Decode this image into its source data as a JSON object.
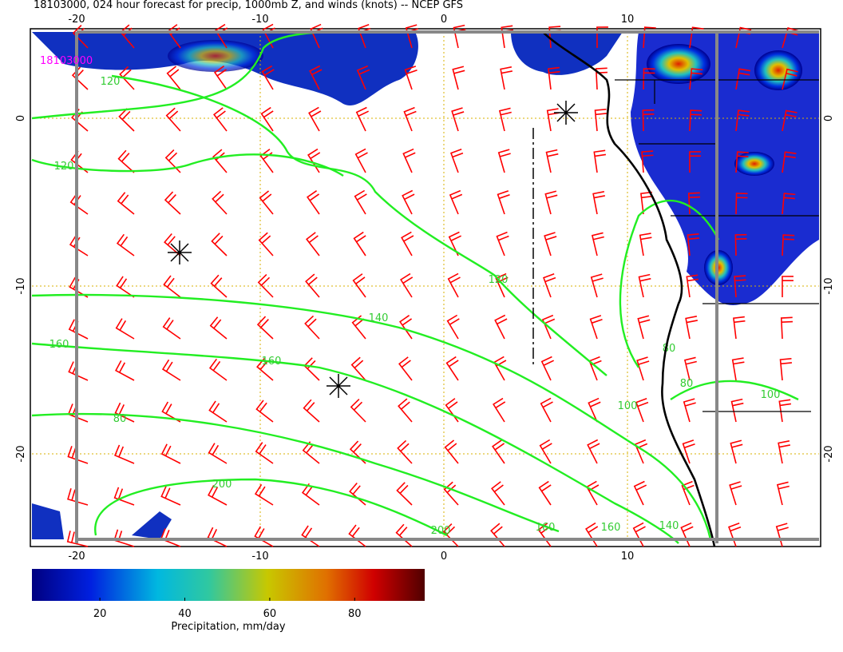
{
  "header": {
    "title": "18103000, 024 hour forecast for precip, 1000mb Z, and winds (knots) -- NCEP GFS",
    "stamp": "18103000"
  },
  "map": {
    "lon_ticks": [
      -20,
      -10,
      0,
      10
    ],
    "lat_ticks": [
      0,
      -10,
      -20
    ],
    "contour_labels": [
      "120",
      "120",
      "160",
      "160",
      "140",
      "120",
      "80",
      "200",
      "200",
      "160",
      "160",
      "140",
      "100",
      "80",
      "80",
      "100"
    ]
  },
  "colorbar": {
    "ticks": [
      20,
      40,
      60,
      80
    ],
    "label": "Precipitation, mm/day"
  }
}
